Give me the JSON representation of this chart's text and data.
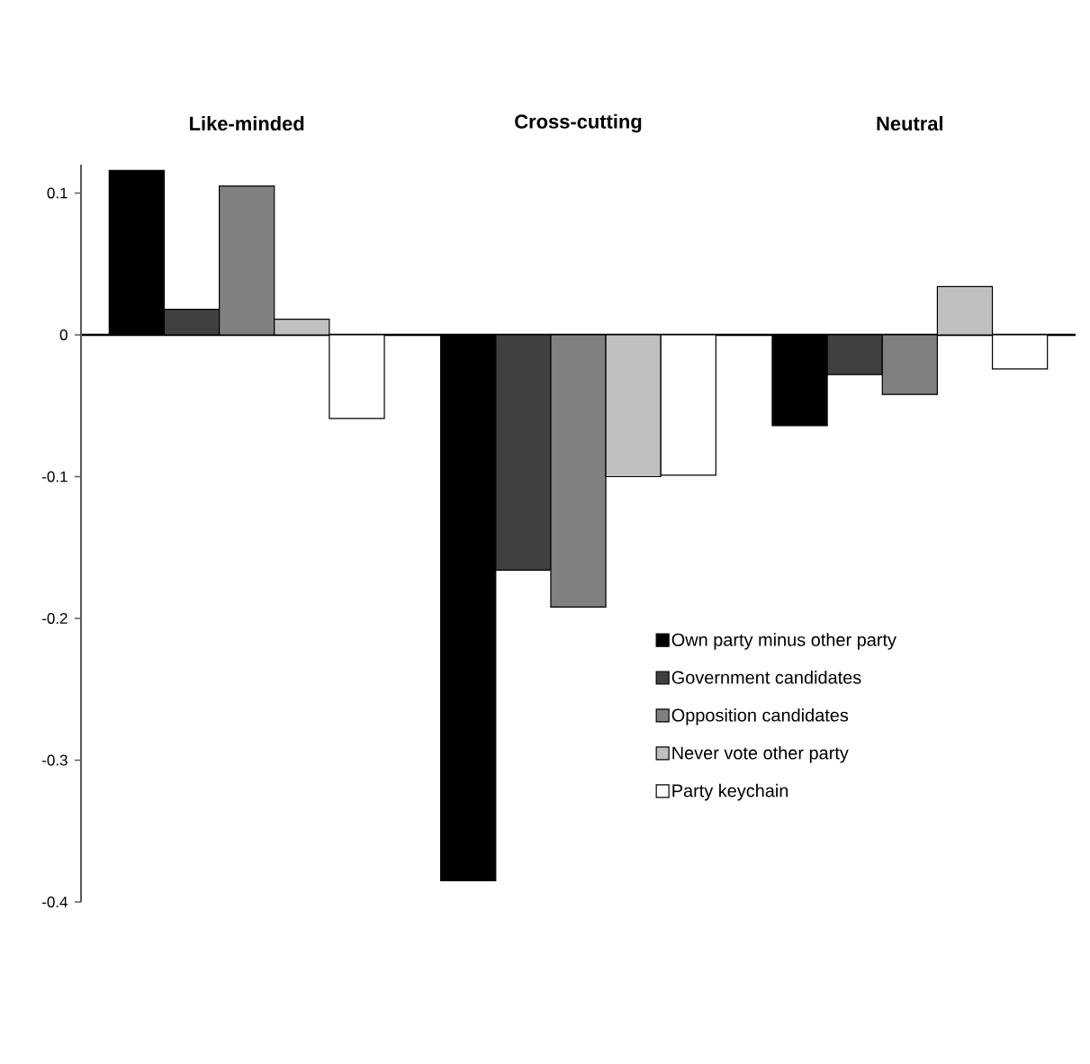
{
  "chart_data": {
    "type": "bar",
    "categories": [
      "Like-minded",
      "Cross-cutting",
      "Neutral"
    ],
    "series": [
      {
        "name": "Own party minus other party",
        "color": "#000000",
        "values": [
          0.116,
          -0.385,
          -0.064
        ]
      },
      {
        "name": "Government candidates",
        "color": "#404040",
        "values": [
          0.018,
          -0.166,
          -0.028
        ]
      },
      {
        "name": "Opposition candidates",
        "color": "#808080",
        "values": [
          0.105,
          -0.192,
          -0.042
        ]
      },
      {
        "name": "Never vote other party",
        "color": "#c0c0c0",
        "values": [
          0.011,
          -0.1,
          0.034
        ]
      },
      {
        "name": "Party keychain",
        "color": "#ffffff",
        "values": [
          -0.059,
          -0.099,
          -0.024
        ]
      }
    ],
    "ylim": [
      -0.4,
      0.12
    ],
    "yticks": [
      0.1,
      0,
      -0.1,
      -0.2,
      -0.3,
      -0.4
    ],
    "legend": "bottom right"
  }
}
